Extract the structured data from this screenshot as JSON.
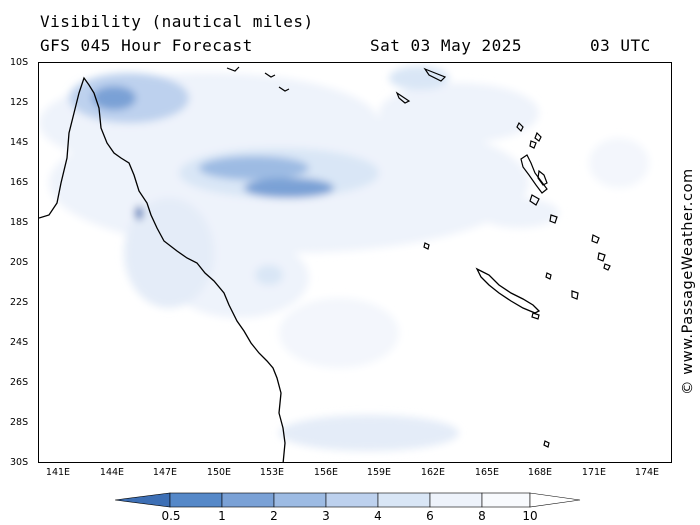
{
  "header": {
    "title": "Visibility (nautical miles)",
    "subtitle": "GFS 045 Hour Forecast",
    "datetime": "Sat 03 May 2025",
    "time_zone": "03 UTC"
  },
  "credit": "© www.PassageWeather.com",
  "map": {
    "lat_labels": [
      "10S",
      "12S",
      "14S",
      "16S",
      "18S",
      "20S",
      "22S",
      "24S",
      "26S",
      "28S",
      "30S"
    ],
    "lon_labels": [
      "141E",
      "144E",
      "147E",
      "150E",
      "153E",
      "156E",
      "159E",
      "162E",
      "165E",
      "168E",
      "171E",
      "174E"
    ]
  },
  "legend": {
    "levels": [
      "0.5",
      "1",
      "2",
      "3",
      "4",
      "6",
      "8",
      "10"
    ],
    "colors": [
      "#3d6fb5",
      "#5588c8",
      "#7aa1d6",
      "#9dbbe3",
      "#bdd1ee",
      "#d9e6f6",
      "#eef3fb",
      "#ffffff"
    ]
  }
}
